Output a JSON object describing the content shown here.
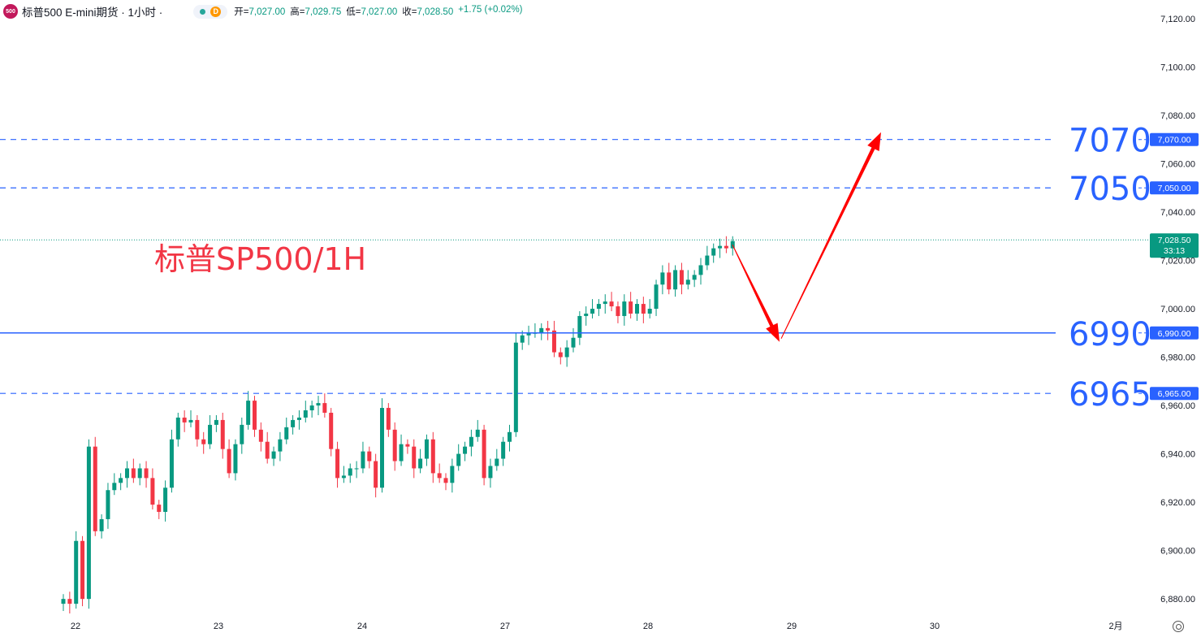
{
  "header": {
    "logo": "500",
    "title": "标普500 E-mini期货 · 1小时 ·",
    "indicator_d": "D",
    "open_label": "开",
    "open": "7,027.00",
    "high_label": "高",
    "high": "7,029.75",
    "low_label": "低",
    "low": "7,027.00",
    "close_label": "收",
    "close": "7,028.50",
    "change": "+1.75 (+0.02%)"
  },
  "annotation_text": "标普SP500/1H",
  "current_price": {
    "value": 7028.5,
    "label": "7,028.50",
    "countdown": "33:13"
  },
  "colors": {
    "up": "#089981",
    "down": "#f23645",
    "line": "#2962ff",
    "big_label": "#2962ff",
    "annotation": "#f23645",
    "arrow": "#ff0000"
  },
  "chart_data": {
    "type": "candlestick",
    "y_axis": {
      "min": 6873,
      "max": 7125,
      "ticks": [
        "6,880.00",
        "6,900.00",
        "6,920.00",
        "6,940.00",
        "6,960.00",
        "6,980.00",
        "7,000.00",
        "7,020.00",
        "7,040.00",
        "7,060.00",
        "7,080.00",
        "7,100.00",
        "7,120.00"
      ]
    },
    "x_axis": {
      "labels": [
        "22",
        "23",
        "24",
        "27",
        "28",
        "29",
        "30",
        "2月"
      ]
    },
    "levels": [
      {
        "value": 7070,
        "big_label": "7070",
        "axis_label": "7,070.00",
        "style": "dashed"
      },
      {
        "value": 7050,
        "big_label": "7050",
        "axis_label": "7,050.00",
        "style": "dashed"
      },
      {
        "value": 6990,
        "big_label": "6990",
        "axis_label": "6,990.00",
        "style": "solid"
      },
      {
        "value": 6965,
        "big_label": "6965",
        "axis_label": "6,965.00",
        "style": "dashed"
      }
    ],
    "projection": {
      "points": [
        7028.5,
        6989,
        7071
      ]
    },
    "closes": [
      6880,
      6878,
      6904,
      6880,
      6943,
      6908,
      6913,
      6925,
      6928,
      6930,
      6934,
      6930,
      6934,
      6930,
      6919,
      6916,
      6926,
      6946,
      6955,
      6953,
      6954,
      6946,
      6944,
      6952,
      6954,
      6942,
      6932,
      6944,
      6952,
      6962,
      6950,
      6945,
      6938,
      6941,
      6946,
      6951,
      6954,
      6955,
      6958,
      6960,
      6961,
      6957,
      6942,
      6930,
      6931,
      6934,
      6934,
      6941,
      6937,
      6926,
      6959,
      6950,
      6937,
      6944,
      6943,
      6934,
      6938,
      6946,
      6932,
      6930,
      6928,
      6935,
      6940,
      6943,
      6947,
      6950,
      6930,
      6935,
      6938,
      6945,
      6949,
      6986,
      6989,
      6990,
      6990,
      6992,
      6991,
      6982,
      6980,
      6984,
      6988,
      6997,
      6998,
      7000,
      7002,
      7003,
      7001,
      6997,
      7003,
      6998,
      7002,
      6998,
      7000,
      7010,
      7015,
      7008,
      7016,
      7010,
      7012,
      7014,
      7018,
      7022,
      7025,
      7026,
      7025,
      7028
    ]
  }
}
